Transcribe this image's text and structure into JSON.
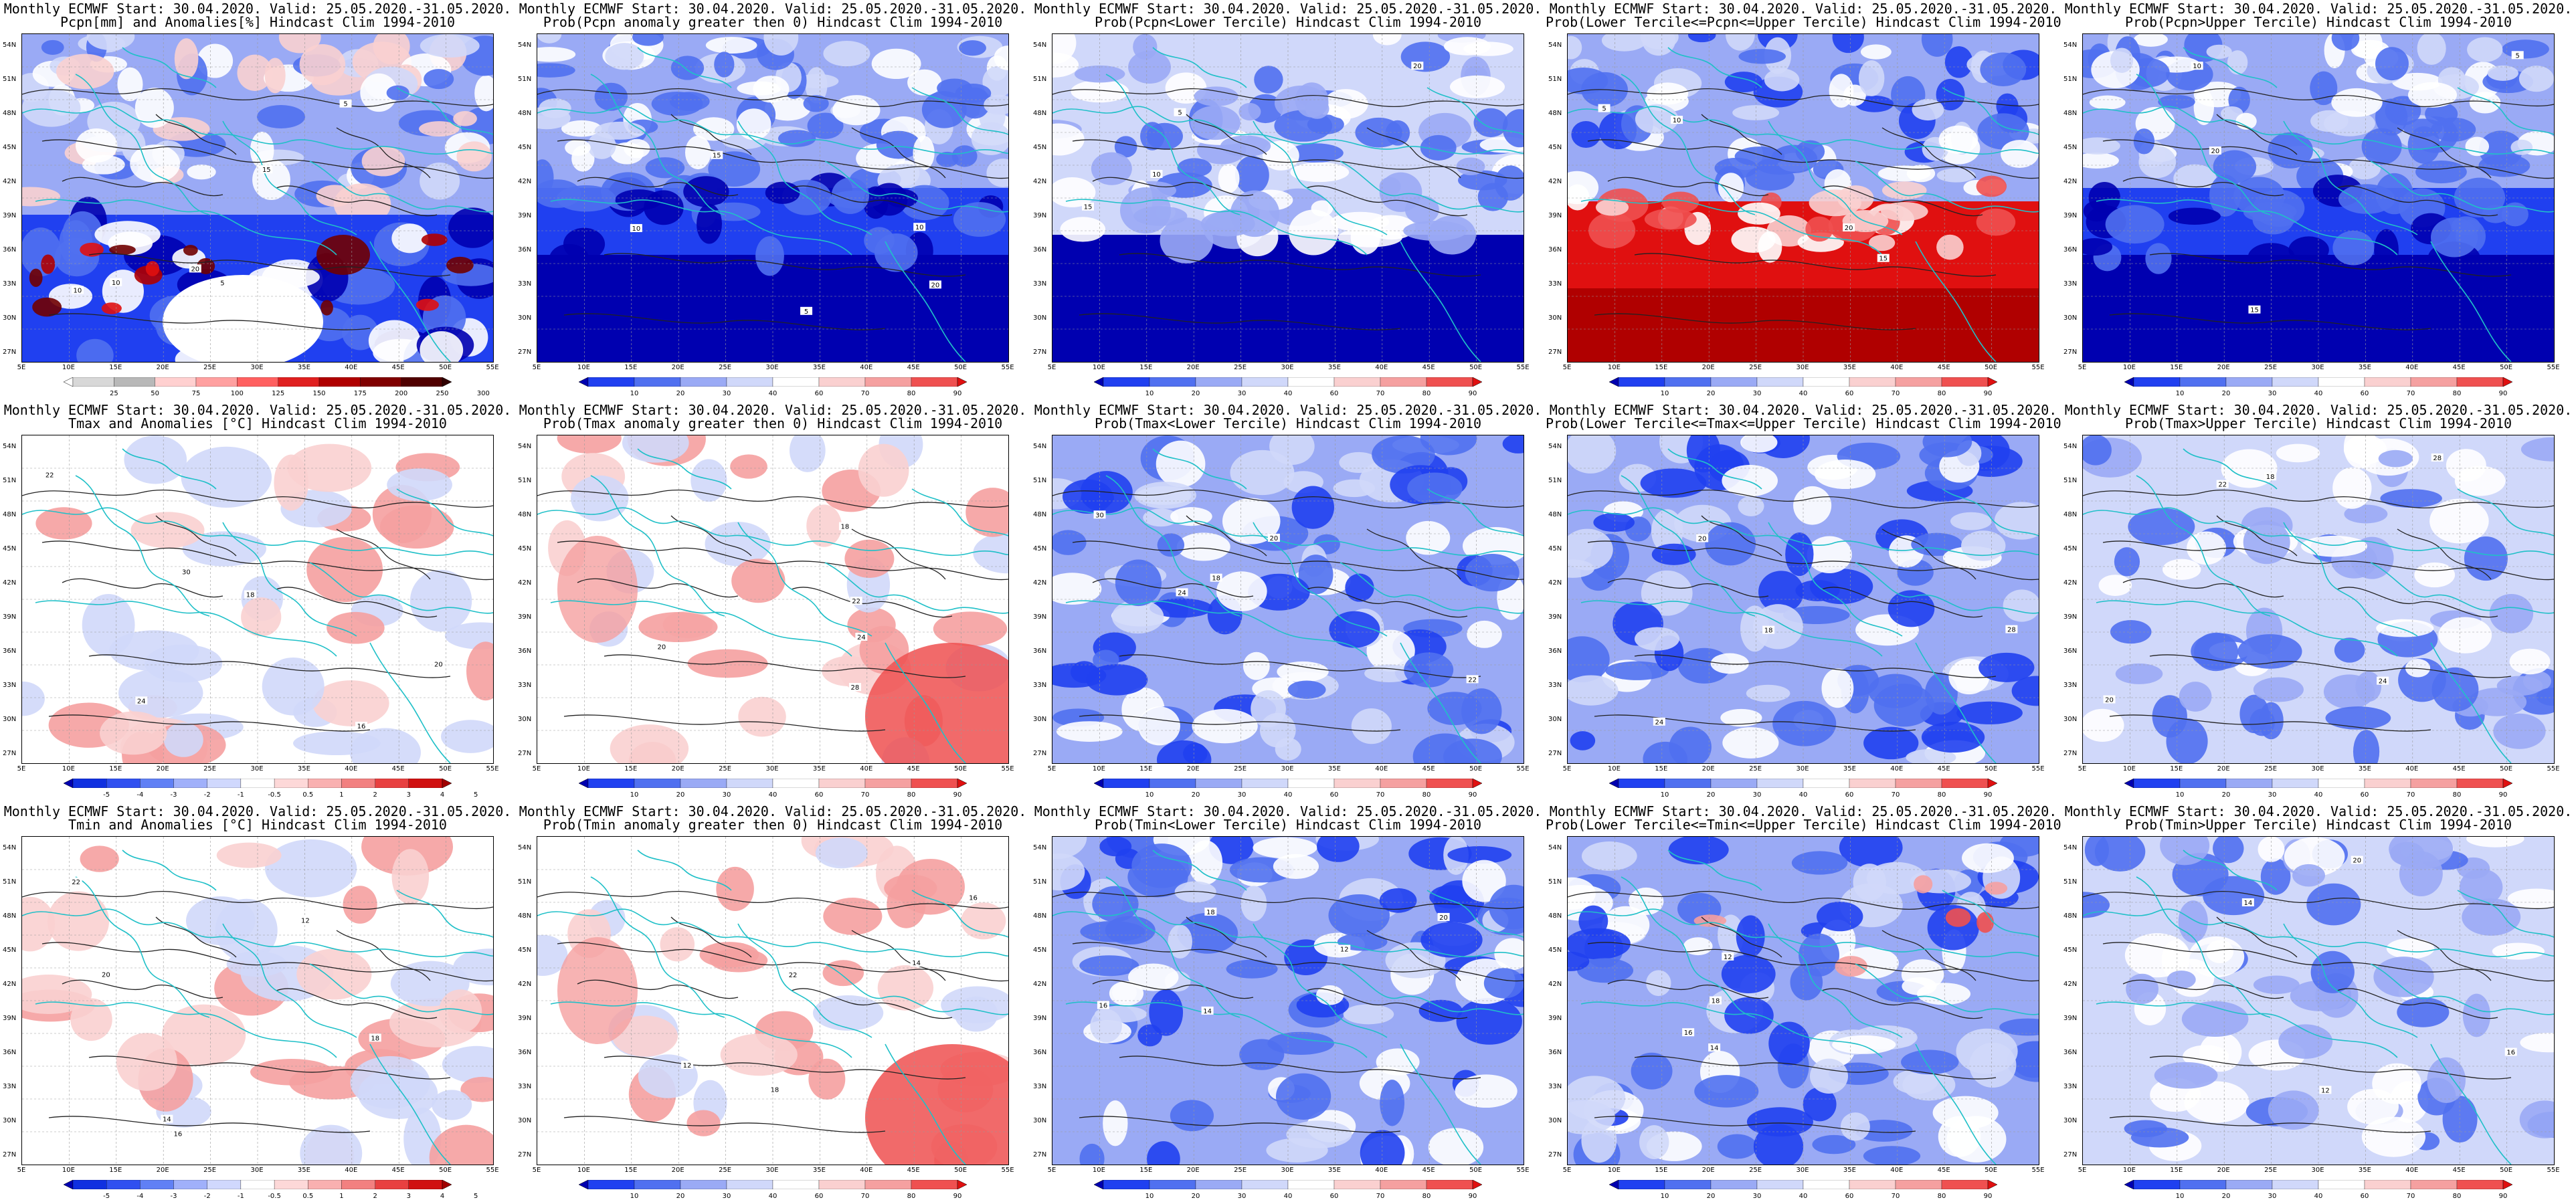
{
  "common_title": "Monthly ECMWF Start: 30.04.2020. Valid: 25.05.2020.-31.05.2020.",
  "lat_labels": [
    "54N",
    "51N",
    "48N",
    "45N",
    "42N",
    "39N",
    "36N",
    "33N",
    "30N",
    "27N"
  ],
  "lon_labels": [
    "5E",
    "10E",
    "15E",
    "20E",
    "25E",
    "30E",
    "35E",
    "40E",
    "45E",
    "50E",
    "55E"
  ],
  "colorbars": {
    "pcpn": {
      "labels": [
        "25",
        "50",
        "75",
        "100",
        "125",
        "150",
        "175",
        "200",
        "250",
        "300"
      ],
      "colors": [
        "#ffffff",
        "#d8d8d8",
        "#b8b8b8",
        "#ffd0d0",
        "#ffa0a0",
        "#ff6060",
        "#e02020",
        "#b00000",
        "#800000",
        "#500000",
        "#300000"
      ]
    },
    "prob": {
      "labels": [
        "10",
        "20",
        "30",
        "40",
        "60",
        "70",
        "80",
        "90"
      ],
      "colors": [
        "#0000b0",
        "#2040f0",
        "#5070f0",
        "#9aaaf5",
        "#d0d8fa",
        "#ffffff",
        "#fad0d0",
        "#f5a0a0",
        "#ef5050",
        "#e01010"
      ]
    },
    "anom": {
      "labels": [
        "-5",
        "-4",
        "-3",
        "-2",
        "-1",
        "-0.5",
        "0.5",
        "1",
        "2",
        "3",
        "4",
        "5"
      ],
      "colors": [
        "#0000b0",
        "#1030e0",
        "#3050f0",
        "#6080f5",
        "#a0b0fa",
        "#d0d8fd",
        "#ffffff",
        "#fdd8d8",
        "#f9b0b0",
        "#f28080",
        "#e84040",
        "#d01010",
        "#a00000"
      ]
    }
  },
  "panels": [
    {
      "row": 0,
      "col": 0,
      "line2": "Pcpn[mm] and Anomalies[%] Hindcast Clim 1994-2010",
      "bar": "pcpn",
      "field": "pcpn_anom",
      "contours": [
        "10",
        "20",
        "5",
        "15",
        "10",
        "5"
      ]
    },
    {
      "row": 0,
      "col": 1,
      "line2": "Prob(Pcpn anomaly greater then 0) Hindcast Clim 1994-2010",
      "bar": "prob",
      "field": "blue_dense",
      "contours": [
        "10",
        "5",
        "15",
        "20",
        "10"
      ]
    },
    {
      "row": 0,
      "col": 2,
      "line2": "Prob(Pcpn<Lower Tercile) Hindcast Clim 1994-2010",
      "bar": "prob",
      "field": "blue_south",
      "contours": [
        "10",
        "20",
        "15",
        "5"
      ]
    },
    {
      "row": 0,
      "col": 3,
      "line2": "Prob(Lower Tercile<=Pcpn<=Upper Tercile) Hindcast Clim 1994-2010",
      "bar": "prob",
      "field": "red_south",
      "contours": [
        "10",
        "5",
        "15",
        "20"
      ]
    },
    {
      "row": 0,
      "col": 4,
      "line2": "Prob(Pcpn>Upper Tercile) Hindcast Clim 1994-2010",
      "bar": "prob",
      "field": "blue_dense",
      "contours": [
        "10",
        "20",
        "15",
        "5"
      ]
    },
    {
      "row": 1,
      "col": 0,
      "line2": "Tmax and Anomalies [°C] Hindcast Clim 1994-2010",
      "bar": "anom",
      "field": "pink_light",
      "contours": [
        "24",
        "18",
        "22",
        "30",
        "20",
        "16"
      ]
    },
    {
      "row": 1,
      "col": 1,
      "line2": "Prob(Tmax anomaly greater then 0) Hindcast Clim 1994-2010",
      "bar": "prob",
      "field": "pink_se",
      "contours": [
        "20",
        "24",
        "18",
        "28",
        "22"
      ]
    },
    {
      "row": 1,
      "col": 2,
      "line2": "Prob(Tmax<Lower Tercile) Hindcast Clim 1994-2010",
      "bar": "prob",
      "field": "blue_mottle",
      "contours": [
        "24",
        "22",
        "18",
        "30",
        "20"
      ]
    },
    {
      "row": 1,
      "col": 3,
      "line2": "Prob(Lower Tercile<=Tmax<=Upper Tercile) Hindcast Clim 1994-2010",
      "bar": "prob",
      "field": "blue_mottle",
      "contours": [
        "20",
        "24",
        "28",
        "18"
      ]
    },
    {
      "row": 1,
      "col": 4,
      "line2": "Prob(Tmax>Upper Tercile) Hindcast Clim 1994-2010",
      "bar": "prob",
      "field": "blue_light",
      "contours": [
        "22",
        "18",
        "24",
        "28",
        "20"
      ]
    },
    {
      "row": 2,
      "col": 0,
      "line2": "Tmin and Anomalies [°C] Hindcast Clim 1994-2010",
      "bar": "anom",
      "field": "pink_light",
      "contours": [
        "14",
        "12",
        "16",
        "20",
        "18",
        "22"
      ]
    },
    {
      "row": 2,
      "col": 1,
      "line2": "Prob(Tmin anomaly greater then 0) Hindcast Clim 1994-2010",
      "bar": "prob",
      "field": "pink_se",
      "contours": [
        "12",
        "14",
        "16",
        "18",
        "22"
      ]
    },
    {
      "row": 2,
      "col": 2,
      "line2": "Prob(Tmin<Lower Tercile) Hindcast Clim 1994-2010",
      "bar": "prob",
      "field": "blue_mottle",
      "contours": [
        "14",
        "16",
        "12",
        "20",
        "18"
      ]
    },
    {
      "row": 2,
      "col": 3,
      "line2": "Prob(Lower Tercile<=Tmin<=Upper Tercile) Hindcast Clim 1994-2010",
      "bar": "prob",
      "field": "blue_mottle_red",
      "contours": [
        "12",
        "14",
        "18",
        "16"
      ]
    },
    {
      "row": 2,
      "col": 4,
      "line2": "Prob(Tmin>Upper Tercile) Hindcast Clim 1994-2010",
      "bar": "prob",
      "field": "blue_light",
      "contours": [
        "14",
        "12",
        "16",
        "20"
      ]
    }
  ]
}
